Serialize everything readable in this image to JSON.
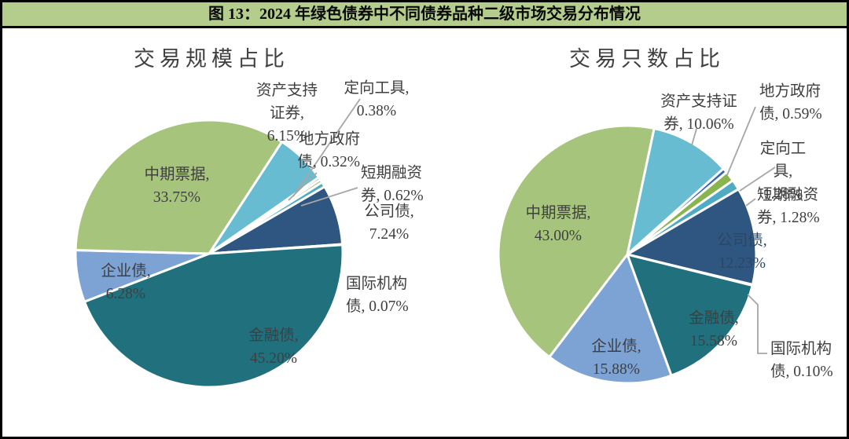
{
  "figure": {
    "title": "图 13：2024 年绿色债券中不同债券品种二级市场交易分布情况"
  },
  "colors": {
    "title_bar_bg": "#b4cd8c",
    "frame_border": "#000000",
    "label_text": "#3f3f3f",
    "leader_line": "#a6a6a6",
    "slice_border": "#ffffff"
  },
  "chart_data": [
    {
      "type": "pie",
      "title": "交易规模占比",
      "legend_position": "none",
      "slices": [
        {
          "key": "asset-backed-securities",
          "name": "资产支持证券",
          "value": 6.15,
          "color": "#68bcd2"
        },
        {
          "key": "local-government-bond",
          "name": "地方政府债",
          "value": 0.32,
          "color": "#3465b0"
        },
        {
          "key": "private-placement-note",
          "name": "定向工具",
          "value": 0.38,
          "color": "#8ab54e"
        },
        {
          "key": "short-term-commercial-paper",
          "name": "短期融资券",
          "value": 0.62,
          "color": "#4faac4"
        },
        {
          "key": "corporate-bond",
          "name": "公司债",
          "value": 7.24,
          "color": "#2e5680"
        },
        {
          "key": "international-institution-bond",
          "name": "国际机构债",
          "value": 0.07,
          "color": "#9db3c8"
        },
        {
          "key": "financial-bond",
          "name": "金融债",
          "value": 45.2,
          "color": "#20707e"
        },
        {
          "key": "enterprise-bond",
          "name": "企业债",
          "value": 6.28,
          "color": "#7da3d4"
        },
        {
          "key": "medium-term-note",
          "name": "中期票据",
          "value": 33.75,
          "color": "#a6c47c"
        }
      ],
      "labels": [
        {
          "text": "资产支持\n证券,\n6.15%"
        },
        {
          "text": "地方政府\n债, 0.32%"
        },
        {
          "text": "定向工具,\n0.38%"
        },
        {
          "text": "短期融资\n券, 0.62%"
        },
        {
          "text": "公司债,\n7.24%"
        },
        {
          "text": "国际机构\n债, 0.07%"
        },
        {
          "text": "金融债,\n45.20%"
        },
        {
          "text": "企业债,\n6.28%"
        },
        {
          "text": "中期票据,\n33.75%"
        }
      ]
    },
    {
      "type": "pie",
      "title": "交易只数占比",
      "legend_position": "none",
      "slices": [
        {
          "key": "asset-backed-securities",
          "name": "资产支持证券",
          "value": 10.06,
          "color": "#68bcd2"
        },
        {
          "key": "local-government-bond",
          "name": "地方政府债",
          "value": 0.59,
          "color": "#3465b0"
        },
        {
          "key": "private-placement-note",
          "name": "定向工具",
          "value": 1.28,
          "color": "#8ab54e"
        },
        {
          "key": "short-term-commercial-paper",
          "name": "短期融资券",
          "value": 1.28,
          "color": "#4faac4"
        },
        {
          "key": "corporate-bond",
          "name": "公司债",
          "value": 12.23,
          "color": "#2e5680"
        },
        {
          "key": "international-institution-bond",
          "name": "国际机构债",
          "value": 0.1,
          "color": "#9db3c8"
        },
        {
          "key": "financial-bond",
          "name": "金融债",
          "value": 15.58,
          "color": "#20707e"
        },
        {
          "key": "enterprise-bond",
          "name": "企业债",
          "value": 15.88,
          "color": "#7da3d4"
        },
        {
          "key": "medium-term-note",
          "name": "中期票据",
          "value": 43.0,
          "color": "#a6c47c"
        }
      ],
      "labels": [
        {
          "text": "资产支持证\n券, 10.06%"
        },
        {
          "text": "地方政府\n债, 0.59%"
        },
        {
          "text": "定向工具,\n1.28%"
        },
        {
          "text": "短期融资\n券, 1.28%"
        },
        {
          "text": "公司债,\n12.23%"
        },
        {
          "text": "国际机构\n债, 0.10%"
        },
        {
          "text": "金融债,\n15.58%"
        },
        {
          "text": "企业债,\n15.88%"
        },
        {
          "text": "中期票据,\n43.00%"
        }
      ]
    }
  ]
}
